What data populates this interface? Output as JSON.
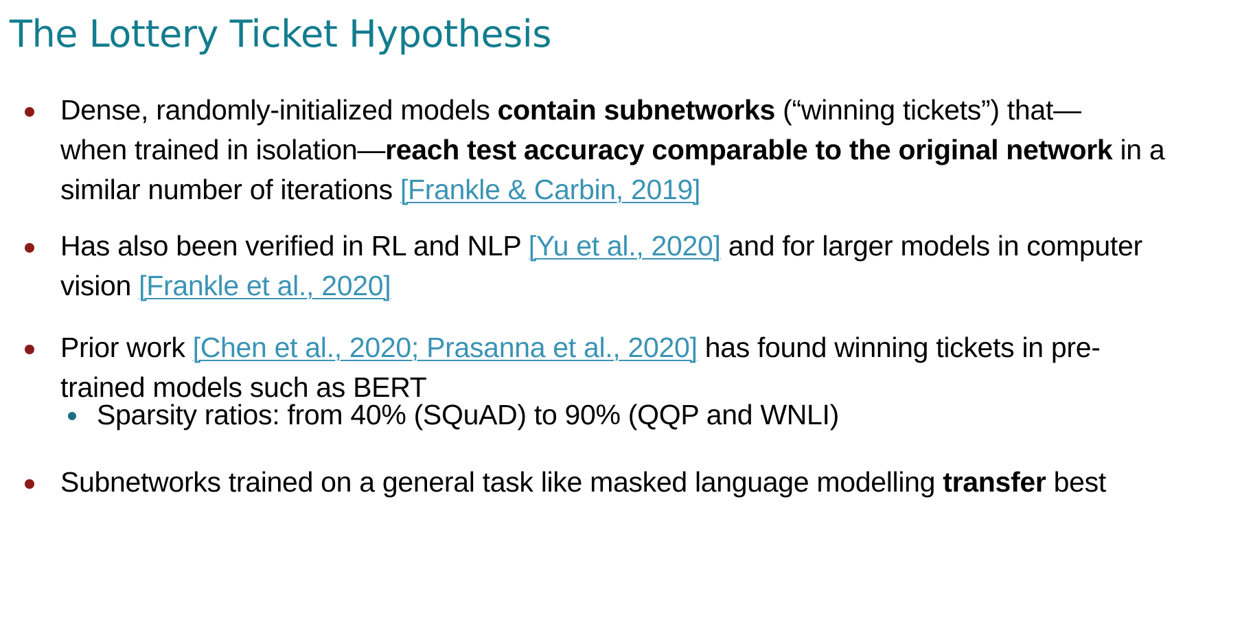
{
  "title": "The Lottery Ticket Hypothesis",
  "colors": {
    "title": "#127d8e",
    "link": "#3a93b4",
    "bullet_dot": "#8b1a1a",
    "sub_bullet_dot": "#1a6f86",
    "text": "#000000"
  },
  "bullets": [
    {
      "l1_a": "Dense, randomly-initialized models ",
      "l1_b": "contain subnetworks",
      "l1_c": " (“winning tickets”) that—",
      "l2_a": "when trained in isolation—",
      "l2_b": "reach test accuracy comparable to the original network",
      "l2_c": " in a",
      "l3_a": "similar number of iterations ",
      "cite": "[Frankle & Carbin, 2019]"
    },
    {
      "l1_a": "Has also been verified in RL and NLP ",
      "cite1": "[Yu et al., 2020]",
      "l1_b": " and for larger models in computer",
      "l2_a": "vision ",
      "cite2": "[Frankle et al., 2020]"
    },
    {
      "l1_a": "Prior work ",
      "cite": "[Chen et al., 2020; Prasanna et al., 2020]",
      "l1_b": " has found winning tickets in pre-",
      "l2_a": "trained models such as BERT",
      "sub": "Sparsity ratios: from 40% (SQuAD) to 90% (QQP and WNLI)"
    },
    {
      "l1_a": "Subnetworks trained on a general task like masked language modelling ",
      "l1_b": "transfer",
      "l1_c": " best"
    }
  ]
}
